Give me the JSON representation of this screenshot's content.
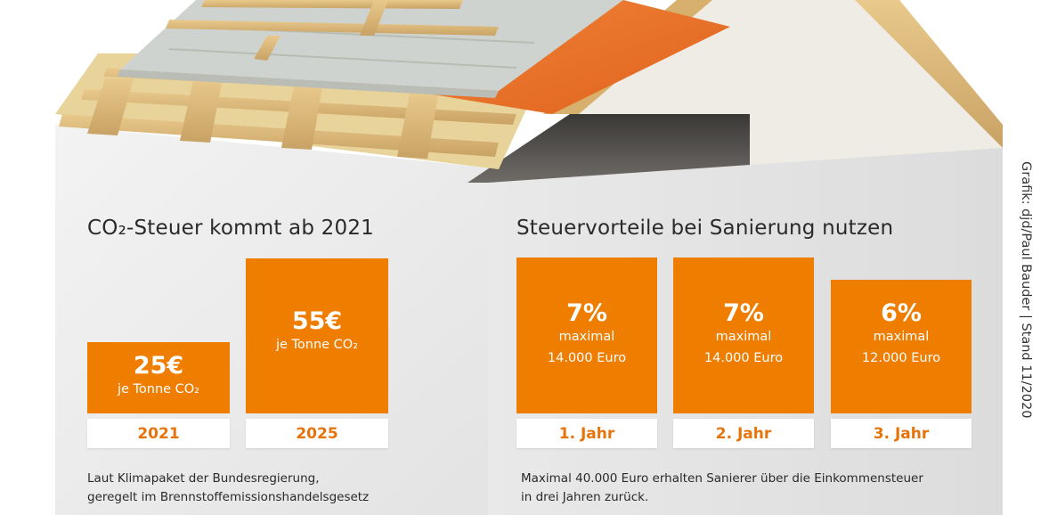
{
  "colors": {
    "accent": "#ef7d00",
    "label_text": "#e7740a",
    "wall": "#ededed"
  },
  "co2_section": {
    "title": "CO₂-Steuer kommt ab 2021",
    "note_line1": "Laut Klimapaket der Bundesregierung,",
    "note_line2": "geregelt im Brennstoffemissionshandelsgesetz"
  },
  "tax_section": {
    "title": "Steuervorteile bei Sanierung nutzen",
    "note_line1": "Maximal 40.000 Euro erhalten Sanierer über die Einkommensteuer",
    "note_line2": "in drei Jahren zurück."
  },
  "credit": "Grafik: djd/Paul Bauder | Stand 11/2020",
  "chart_data": [
    {
      "type": "bar",
      "title": "CO₂-Steuer kommt ab 2021",
      "categories": [
        "2021",
        "2025"
      ],
      "values": [
        25,
        55
      ],
      "value_labels": [
        "25€",
        "55€"
      ],
      "sublabels": [
        "je Tonne CO₂",
        "je Tonne CO₂"
      ],
      "unit": "€ je Tonne CO₂"
    },
    {
      "type": "bar",
      "title": "Steuervorteile bei Sanierung nutzen",
      "categories": [
        "1. Jahr",
        "2. Jahr",
        "3. Jahr"
      ],
      "values": [
        7,
        7,
        6
      ],
      "value_labels": [
        "7%",
        "7%",
        "6%"
      ],
      "sublabels_1": [
        "maximal",
        "maximal",
        "maximal"
      ],
      "sublabels_2": [
        "14.000 Euro",
        "14.000 Euro",
        "12.000 Euro"
      ],
      "max_amounts_euro": [
        14000,
        14000,
        12000
      ],
      "unit": "%"
    }
  ]
}
